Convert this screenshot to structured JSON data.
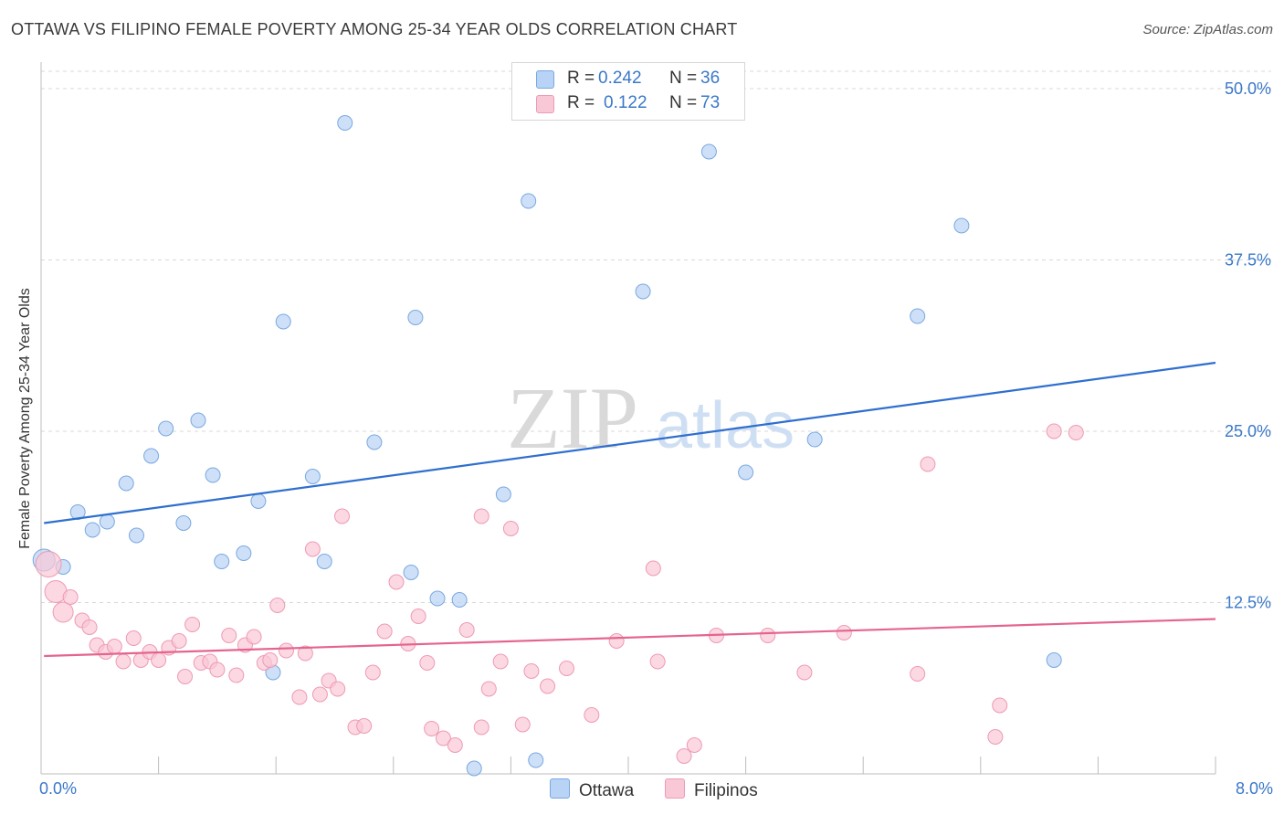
{
  "title": "OTTAWA VS FILIPINO FEMALE POVERTY AMONG 25-34 YEAR OLDS CORRELATION CHART",
  "source": "Source: ZipAtlas.com",
  "watermark": {
    "zip": "ZIP",
    "atlas": "atlas"
  },
  "legend_top": [
    {
      "r_label": "R =",
      "r_value": "0.242",
      "n_label": "N =",
      "n_value": "36"
    },
    {
      "r_label": "R =",
      "r_value": "0.122",
      "n_label": "N =",
      "n_value": "73"
    }
  ],
  "legend_bottom": [
    "Ottawa",
    "Filipinos"
  ],
  "colors": {
    "ottawa_fill": "#b8d3f5",
    "ottawa_stroke": "#7aa8e0",
    "ottawa_line": "#2f6fcf",
    "filipinos_fill": "#f9c8d6",
    "filipinos_stroke": "#ef9ab4",
    "filipinos_line": "#e5648f",
    "tick_text": "#3a78c9",
    "grid": "#d8d8d8"
  },
  "chart_data": {
    "type": "scatter",
    "title": "OTTAWA VS FILIPINO FEMALE POVERTY AMONG 25-34 YEAR OLDS CORRELATION CHART",
    "xlabel": "",
    "ylabel": "Female Poverty Among 25-34 Year Olds",
    "xlim": [
      0,
      8
    ],
    "ylim": [
      0,
      50
    ],
    "x_tick_labels": [
      "0.0%",
      "8.0%"
    ],
    "y_ticks": [
      12.5,
      25.0,
      37.5,
      50.0
    ],
    "y_tick_labels": [
      "12.5%",
      "25.0%",
      "37.5%",
      "50.0%"
    ],
    "grid": true,
    "series": [
      {
        "name": "Ottawa",
        "r": 0.242,
        "n": 36,
        "trend": [
          [
            0.02,
            18.3
          ],
          [
            8.0,
            30.0
          ]
        ],
        "points": [
          [
            0.02,
            15.6
          ],
          [
            0.15,
            15.1
          ],
          [
            0.25,
            19.1
          ],
          [
            0.35,
            17.8
          ],
          [
            0.45,
            18.4
          ],
          [
            0.58,
            21.2
          ],
          [
            0.65,
            17.4
          ],
          [
            0.75,
            23.2
          ],
          [
            0.85,
            25.2
          ],
          [
            0.97,
            18.3
          ],
          [
            1.07,
            25.8
          ],
          [
            1.17,
            21.8
          ],
          [
            1.23,
            15.5
          ],
          [
            1.38,
            16.1
          ],
          [
            1.48,
            19.9
          ],
          [
            1.58,
            7.4
          ],
          [
            1.65,
            33.0
          ],
          [
            1.85,
            21.7
          ],
          [
            1.93,
            15.5
          ],
          [
            2.07,
            47.5
          ],
          [
            2.27,
            24.2
          ],
          [
            2.52,
            14.7
          ],
          [
            2.55,
            33.3
          ],
          [
            2.7,
            12.8
          ],
          [
            2.85,
            12.7
          ],
          [
            2.95,
            0.4
          ],
          [
            3.15,
            20.4
          ],
          [
            3.32,
            41.8
          ],
          [
            3.37,
            1.0
          ],
          [
            4.1,
            35.2
          ],
          [
            4.55,
            45.4
          ],
          [
            4.8,
            22.0
          ],
          [
            5.27,
            24.4
          ],
          [
            5.97,
            33.4
          ],
          [
            6.27,
            40.0
          ],
          [
            6.9,
            8.3
          ]
        ]
      },
      {
        "name": "Filipinos",
        "r": 0.122,
        "n": 73,
        "trend": [
          [
            0.02,
            8.6
          ],
          [
            8.0,
            11.3
          ]
        ],
        "points": [
          [
            0.05,
            15.3
          ],
          [
            0.1,
            13.3
          ],
          [
            0.15,
            11.8
          ],
          [
            0.2,
            12.9
          ],
          [
            0.28,
            11.2
          ],
          [
            0.33,
            10.7
          ],
          [
            0.38,
            9.4
          ],
          [
            0.44,
            8.9
          ],
          [
            0.5,
            9.3
          ],
          [
            0.56,
            8.2
          ],
          [
            0.63,
            9.9
          ],
          [
            0.68,
            8.3
          ],
          [
            0.74,
            8.9
          ],
          [
            0.8,
            8.3
          ],
          [
            0.87,
            9.2
          ],
          [
            0.94,
            9.7
          ],
          [
            0.98,
            7.1
          ],
          [
            1.03,
            10.9
          ],
          [
            1.09,
            8.1
          ],
          [
            1.15,
            8.2
          ],
          [
            1.2,
            7.6
          ],
          [
            1.28,
            10.1
          ],
          [
            1.33,
            7.2
          ],
          [
            1.39,
            9.4
          ],
          [
            1.45,
            10.0
          ],
          [
            1.52,
            8.1
          ],
          [
            1.56,
            8.3
          ],
          [
            1.61,
            12.3
          ],
          [
            1.67,
            9.0
          ],
          [
            1.76,
            5.6
          ],
          [
            1.8,
            8.8
          ],
          [
            1.85,
            16.4
          ],
          [
            1.9,
            5.8
          ],
          [
            1.96,
            6.8
          ],
          [
            2.02,
            6.2
          ],
          [
            2.05,
            18.8
          ],
          [
            2.14,
            3.4
          ],
          [
            2.2,
            3.5
          ],
          [
            2.26,
            7.4
          ],
          [
            2.34,
            10.4
          ],
          [
            2.42,
            14.0
          ],
          [
            2.5,
            9.5
          ],
          [
            2.57,
            11.5
          ],
          [
            2.63,
            8.1
          ],
          [
            2.66,
            3.3
          ],
          [
            2.74,
            2.6
          ],
          [
            2.82,
            2.1
          ],
          [
            2.9,
            10.5
          ],
          [
            3.0,
            3.4
          ],
          [
            3.05,
            6.2
          ],
          [
            3.13,
            8.2
          ],
          [
            3.2,
            17.9
          ],
          [
            3.28,
            3.6
          ],
          [
            3.34,
            7.5
          ],
          [
            3.45,
            6.4
          ],
          [
            3.58,
            7.7
          ],
          [
            3.75,
            4.3
          ],
          [
            3.92,
            9.7
          ],
          [
            4.17,
            15.0
          ],
          [
            4.2,
            8.2
          ],
          [
            4.38,
            1.3
          ],
          [
            4.45,
            2.1
          ],
          [
            4.6,
            10.1
          ],
          [
            4.95,
            10.1
          ],
          [
            5.2,
            7.4
          ],
          [
            5.47,
            10.3
          ],
          [
            5.97,
            7.3
          ],
          [
            6.04,
            22.6
          ],
          [
            6.5,
            2.7
          ],
          [
            6.53,
            5.0
          ],
          [
            6.9,
            25.0
          ],
          [
            7.05,
            24.9
          ],
          [
            3.0,
            18.8
          ]
        ]
      }
    ]
  }
}
